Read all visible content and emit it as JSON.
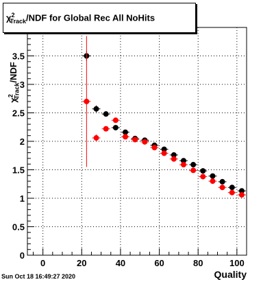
{
  "header": {
    "chi": "χ",
    "sup": "2",
    "sub": "Track",
    "title_rest": "/NDF for Global Rec All NoHits"
  },
  "footer": {
    "timestamp": "Sun Oct 18 16:49:27 2020"
  },
  "axis_text": {
    "xlabel": "Quality",
    "ylabel_chi": "χ",
    "ylabel_sup": "2",
    "ylabel_sub": "Track",
    "ylabel_rest": "/NDF"
  },
  "colors": {
    "series_black": "#000000",
    "series_red": "#ff0000",
    "grid": "#000000"
  },
  "chart_data": {
    "type": "scatter",
    "title": "χ²Track/NDF for Global Rec All NoHits",
    "xlabel": "Quality",
    "ylabel": "χ²Track/NDF",
    "xlim": [
      -8,
      105
    ],
    "ylim": [
      0,
      4.0
    ],
    "xticks": [
      0,
      20,
      40,
      60,
      80,
      100
    ],
    "yticks": [
      0,
      0.5,
      1,
      1.5,
      2,
      2.5,
      3,
      3.5
    ],
    "grid": true,
    "series": [
      {
        "color": "#000000",
        "x": [
          22.5,
          27.5,
          32.5,
          37.5,
          42.5,
          47.5,
          52.5,
          57.5,
          62.5,
          67.5,
          72.5,
          77.5,
          82.5,
          87.5,
          92.5,
          97.5,
          102.5
        ],
        "y": [
          3.5,
          2.57,
          2.48,
          2.24,
          2.16,
          2.05,
          2.02,
          1.93,
          1.86,
          1.76,
          1.66,
          1.59,
          1.48,
          1.39,
          1.29,
          1.19,
          1.13
        ],
        "yerr": [
          0.09,
          0.06,
          0.04,
          0.03,
          0.03,
          0.02,
          0.02,
          0.02,
          0.02,
          0.02,
          0.02,
          0.02,
          0.02,
          0.02,
          0.02,
          0.02,
          0.03
        ]
      },
      {
        "color": "#ff0000",
        "x": [
          22.5,
          27.5,
          32.5,
          37.5,
          42.5,
          47.5,
          52.5,
          57.5,
          62.5,
          67.5,
          72.5,
          77.5,
          82.5,
          87.5,
          92.5,
          97.5,
          102.5
        ],
        "y": [
          2.7,
          2.06,
          2.22,
          2.37,
          2.08,
          2.03,
          1.99,
          1.89,
          1.79,
          1.69,
          1.59,
          1.49,
          1.38,
          1.3,
          1.19,
          1.1,
          1.06
        ],
        "yerr": [
          1.15,
          0.06,
          0.04,
          0.03,
          0.02,
          0.02,
          0.02,
          0.02,
          0.02,
          0.02,
          0.02,
          0.02,
          0.02,
          0.02,
          0.02,
          0.02,
          0.03
        ]
      }
    ]
  }
}
